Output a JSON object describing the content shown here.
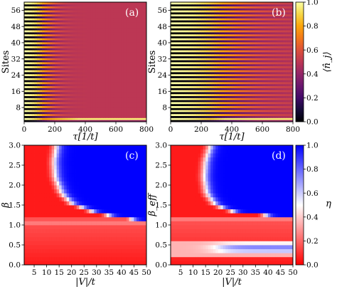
{
  "chart_data": [
    {
      "type": "heatmap",
      "panel_label": "(a)",
      "xlabel": "τ[1/t]",
      "ylabel": "Sites",
      "xlim": [
        0,
        800
      ],
      "ylim": [
        1,
        60
      ],
      "xticks": [
        "0",
        "200",
        "400",
        "600",
        "800"
      ],
      "yticks": [
        "8",
        "16",
        "24",
        "32",
        "40",
        "48",
        "56"
      ],
      "pattern": "alternating-site stripes fading out by τ≈250; bright edge site at bottom persisting",
      "colormap": "inferno"
    },
    {
      "type": "heatmap",
      "panel_label": "(b)",
      "xlabel": "τ[1/t]",
      "ylabel": "Sites",
      "xlim": [
        0,
        800
      ],
      "ylim": [
        1,
        60
      ],
      "xticks": [
        "0",
        "200",
        "400",
        "600",
        "800"
      ],
      "yticks": [
        "8",
        "16",
        "24",
        "32",
        "40",
        "48",
        "56"
      ],
      "pattern": "alternating-site stripes persisting to τ≈650; bright bottom edge site",
      "colormap": "inferno",
      "colorbar": {
        "label": "⟨n̂_j⟩",
        "range": [
          0.0,
          1.0
        ],
        "ticks": [
          "0.0",
          "0.2",
          "0.4",
          "0.6",
          "0.8",
          "1.0"
        ]
      }
    },
    {
      "type": "heatmap",
      "panel_label": "(c)",
      "xlabel": "|V|/t",
      "ylabel": "β",
      "xlim": [
        1,
        50
      ],
      "ylim": [
        0.0,
        3.0
      ],
      "xticks": [
        "5",
        "10",
        "15",
        "20",
        "25",
        "30",
        "35",
        "40",
        "45",
        "50"
      ],
      "yticks": [
        "0.0",
        "0.5",
        "1.0",
        "1.5",
        "2.0",
        "2.5",
        "3.0"
      ],
      "boundary": [
        [
          14,
          3.0
        ],
        [
          13,
          2.6
        ],
        [
          13.5,
          2.2
        ],
        [
          16,
          1.8
        ],
        [
          20,
          1.55
        ],
        [
          28,
          1.35
        ],
        [
          38,
          1.2
        ],
        [
          50,
          1.1
        ]
      ],
      "colormap": "bwr_r"
    },
    {
      "type": "heatmap",
      "panel_label": "(d)",
      "xlabel": "|V|/t",
      "ylabel": "β_eff",
      "xlim": [
        1,
        50
      ],
      "ylim": [
        0.0,
        3.0
      ],
      "xticks": [
        "5",
        "10",
        "15",
        "20",
        "25",
        "30",
        "35",
        "40",
        "45",
        "50"
      ],
      "yticks": [
        "0.0",
        "0.5",
        "1.0",
        "1.5",
        "2.0",
        "2.5",
        "3.0"
      ],
      "boundary": [
        [
          17,
          3.0
        ],
        [
          15,
          2.6
        ],
        [
          14.5,
          2.2
        ],
        [
          15.5,
          1.8
        ],
        [
          19,
          1.5
        ],
        [
          28,
          1.3
        ],
        [
          50,
          1.2
        ]
      ],
      "secondary_blue_region": {
        "v_from": 20,
        "beta_range": [
          0.25,
          0.6
        ]
      },
      "colormap": "bwr_r",
      "colorbar": {
        "label": "η",
        "range": [
          0.0,
          1.0
        ],
        "ticks": [
          "0.0",
          "0.2",
          "0.4",
          "0.6",
          "0.8",
          "1.0"
        ]
      }
    }
  ]
}
